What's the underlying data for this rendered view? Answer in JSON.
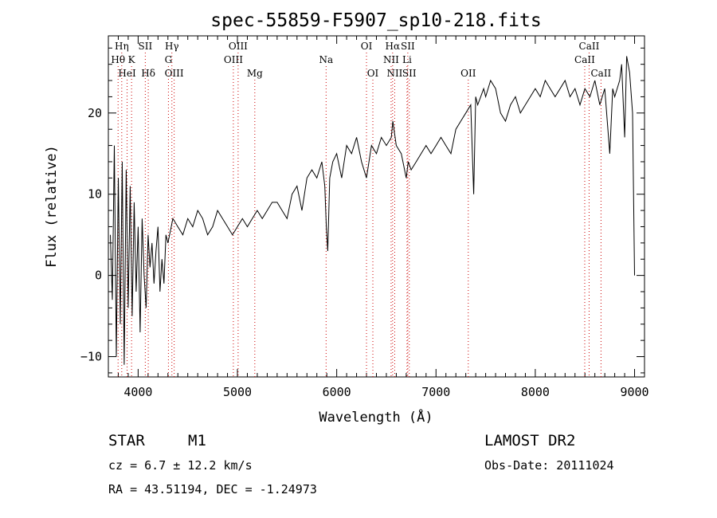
{
  "chart_data": {
    "type": "line",
    "title": "spec-55859-F5907_sp10-218.fits",
    "xlabel": "Wavelength (Å)",
    "ylabel": "Flux (relative)",
    "xlim": [
      3700,
      9100
    ],
    "ylim": [
      -12.5,
      29.5
    ],
    "xticks": [
      4000,
      5000,
      6000,
      7000,
      8000,
      9000
    ],
    "yticks": [
      -10,
      0,
      10,
      20
    ],
    "grid": false,
    "series": [
      {
        "x": [
          3720,
          3740,
          3760,
          3780,
          3800,
          3820,
          3840,
          3860,
          3880,
          3900,
          3920,
          3940,
          3960,
          3980,
          4000,
          4020,
          4040,
          4060,
          4080,
          4100,
          4120,
          4140,
          4160,
          4180,
          4200,
          4220,
          4240,
          4260,
          4280,
          4300,
          4350,
          4400,
          4450,
          4500,
          4550,
          4600,
          4650,
          4700,
          4750,
          4800,
          4850,
          4900,
          4950,
          5000,
          5050,
          5100,
          5150,
          5200,
          5250,
          5300,
          5350,
          5400,
          5450,
          5500,
          5550,
          5600,
          5650,
          5700,
          5750,
          5800,
          5850,
          5880,
          5895,
          5910,
          5930,
          5960,
          6000,
          6050,
          6100,
          6150,
          6200,
          6250,
          6300,
          6350,
          6400,
          6450,
          6500,
          6550,
          6565,
          6600,
          6650,
          6700,
          6720,
          6750,
          6800,
          6850,
          6900,
          6950,
          7000,
          7050,
          7100,
          7150,
          7200,
          7250,
          7300,
          7350,
          7380,
          7400,
          7420,
          7450,
          7480,
          7500,
          7550,
          7600,
          7650,
          7700,
          7750,
          7800,
          7850,
          7900,
          7950,
          8000,
          8050,
          8100,
          8150,
          8200,
          8250,
          8300,
          8350,
          8400,
          8450,
          8500,
          8550,
          8600,
          8650,
          8700,
          8750,
          8780,
          8800,
          8850,
          8870,
          8900,
          8920,
          8950,
          8980,
          9000
        ],
        "y": [
          5,
          -3,
          16,
          -10,
          12,
          -6,
          14,
          -11,
          13,
          -4,
          11,
          -5,
          9,
          -2,
          6,
          -7,
          7,
          0,
          -4,
          5,
          1,
          4,
          -1,
          3,
          6,
          -2,
          2,
          -1,
          5,
          4,
          7,
          6,
          5,
          7,
          6,
          8,
          7,
          5,
          6,
          8,
          7,
          6,
          5,
          6,
          7,
          6,
          7,
          8,
          7,
          8,
          9,
          9,
          8,
          7,
          10,
          11,
          8,
          12,
          13,
          12,
          14,
          11,
          6,
          3,
          12,
          14,
          15,
          12,
          16,
          15,
          17,
          14,
          12,
          16,
          15,
          17,
          16,
          17,
          19,
          16,
          15,
          12,
          14,
          13,
          14,
          15,
          16,
          15,
          16,
          17,
          16,
          15,
          18,
          19,
          20,
          21,
          10,
          22,
          21,
          22,
          23,
          22,
          24,
          23,
          20,
          19,
          21,
          22,
          20,
          21,
          22,
          23,
          22,
          24,
          23,
          22,
          23,
          24,
          22,
          23,
          21,
          23,
          22,
          24,
          21,
          23,
          15,
          23,
          22,
          24,
          26,
          17,
          27,
          25,
          20,
          0
        ]
      }
    ],
    "lines": [
      {
        "label": "Hη",
        "x": 3835,
        "row": 0
      },
      {
        "label": "Hθ",
        "x": 3798,
        "row": 1
      },
      {
        "label": "K",
        "x": 3934,
        "row": 1
      },
      {
        "label": "HeI",
        "x": 3889,
        "row": 2
      },
      {
        "label": "SII",
        "x": 4072,
        "row": 0
      },
      {
        "label": "Hδ",
        "x": 4102,
        "row": 2
      },
      {
        "label": "Hγ",
        "x": 4340,
        "row": 0
      },
      {
        "label": "G",
        "x": 4305,
        "row": 1
      },
      {
        "label": "OIII",
        "x": 4363,
        "row": 2
      },
      {
        "label": "OIII",
        "x": 5007,
        "row": 0
      },
      {
        "label": "OIII",
        "x": 4959,
        "row": 1
      },
      {
        "label": "Mg",
        "x": 5175,
        "row": 2
      },
      {
        "label": "Na",
        "x": 5893,
        "row": 1
      },
      {
        "label": "OI",
        "x": 6300,
        "row": 0
      },
      {
        "label": "OI",
        "x": 6364,
        "row": 2
      },
      {
        "label": "Hα",
        "x": 6563,
        "row": 0
      },
      {
        "label": "SII",
        "x": 6716,
        "row": 0
      },
      {
        "label": "NII",
        "x": 6548,
        "row": 1
      },
      {
        "label": "Li",
        "x": 6708,
        "row": 1
      },
      {
        "label": "NII",
        "x": 6584,
        "row": 2
      },
      {
        "label": "SII",
        "x": 6731,
        "row": 2
      },
      {
        "label": "OII",
        "x": 7325,
        "row": 2
      },
      {
        "label": "CaII",
        "x": 8542,
        "row": 0
      },
      {
        "label": "CaII",
        "x": 8498,
        "row": 1
      },
      {
        "label": "CaII",
        "x": 8662,
        "row": 2
      }
    ]
  },
  "info": {
    "object_class": "STAR",
    "subclass": "M1",
    "survey": "LAMOST DR2",
    "cz": "cz = 6.7 ± 12.2 km/s",
    "obs_date": "Obs-Date: 20111024",
    "coords": "RA =  43.51194, DEC =  -1.24973"
  }
}
